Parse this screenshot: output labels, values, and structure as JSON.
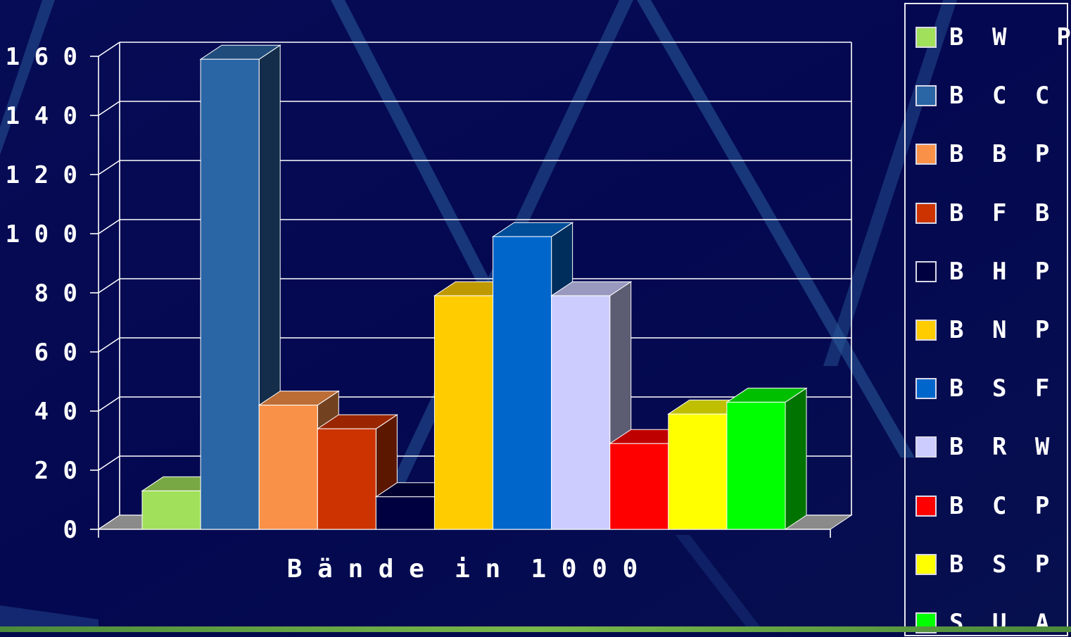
{
  "chart_data": {
    "type": "bar",
    "title": "",
    "xlabel": "Bände in 1000",
    "ylabel": "",
    "ylim": [
      0,
      160
    ],
    "yticks": [
      0,
      20,
      40,
      60,
      80,
      100,
      120,
      140,
      160
    ],
    "ytick_labels": [
      "0",
      "2 0",
      "4 0",
      "6 0",
      "8 0",
      "1 0 0",
      "1 2 0",
      "1 4 0",
      "1 6 0"
    ],
    "xlabel_display": "B ä n d e  i n  1 0 0 0",
    "grid": true,
    "legend_position": "right",
    "categories": [
      "BWP",
      "BCC",
      "BBP",
      "BFBP",
      "BHP",
      "BNP",
      "BSF",
      "BRWP",
      "BCP",
      "BSP",
      "SUA"
    ],
    "values": [
      13,
      159,
      42,
      34,
      11,
      79,
      99,
      79,
      29,
      39,
      43
    ],
    "series": [
      {
        "name": "B W  P",
        "value": 13,
        "color": "#a0e05a"
      },
      {
        "name": "B C C",
        "value": 159,
        "color": "#2a65a5"
      },
      {
        "name": "B B P",
        "value": 42,
        "color": "#fa9148"
      },
      {
        "name": "B F B P",
        "value": 34,
        "color": "#cc3300"
      },
      {
        "name": "B H P",
        "value": 11,
        "color": "#000040"
      },
      {
        "name": "B N P",
        "value": 79,
        "color": "#ffcc00"
      },
      {
        "name": "B S F",
        "value": 99,
        "color": "#0066cc"
      },
      {
        "name": "B R W  P",
        "value": 79,
        "color": "#ccccff"
      },
      {
        "name": "B C P",
        "value": 29,
        "color": "#ff0000"
      },
      {
        "name": "B S P",
        "value": 39,
        "color": "#ffff00"
      },
      {
        "name": "S U A",
        "value": 43,
        "color": "#00ff00"
      }
    ]
  }
}
